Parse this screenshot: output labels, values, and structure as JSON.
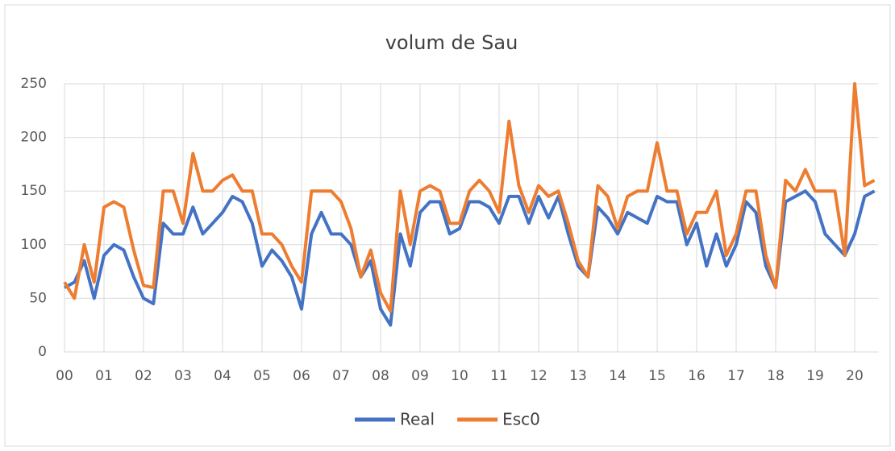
{
  "chart_data": {
    "type": "line",
    "title": "volum de Sau",
    "x": [
      0,
      0.25,
      0.5,
      0.75,
      1,
      1.25,
      1.5,
      1.75,
      2,
      2.25,
      2.5,
      2.75,
      3,
      3.25,
      3.5,
      3.75,
      4,
      4.25,
      4.5,
      4.75,
      5,
      5.25,
      5.5,
      5.75,
      6,
      6.25,
      6.5,
      6.75,
      7,
      7.25,
      7.5,
      7.75,
      8,
      8.25,
      8.5,
      8.75,
      9,
      9.25,
      9.5,
      9.75,
      10,
      10.25,
      10.5,
      10.75,
      11,
      11.25,
      11.5,
      11.75,
      12,
      12.25,
      12.5,
      12.75,
      13,
      13.25,
      13.5,
      13.75,
      14,
      14.25,
      14.5,
      14.75,
      15,
      15.25,
      15.5,
      15.75,
      16,
      16.25,
      16.5,
      16.75,
      17,
      17.25,
      17.5,
      17.75,
      18,
      18.25,
      18.5,
      18.75,
      19,
      19.25,
      19.5,
      19.75,
      20,
      20.25,
      20.5
    ],
    "series": [
      {
        "name": "Real",
        "color": "#4472c4",
        "values": [
          60,
          65,
          85,
          50,
          90,
          100,
          95,
          70,
          50,
          45,
          120,
          110,
          110,
          135,
          110,
          120,
          130,
          145,
          140,
          120,
          80,
          95,
          85,
          70,
          40,
          110,
          130,
          110,
          110,
          100,
          70,
          85,
          40,
          25,
          110,
          80,
          130,
          140,
          140,
          110,
          115,
          140,
          140,
          135,
          120,
          145,
          145,
          120,
          145,
          125,
          145,
          110,
          80,
          70,
          135,
          125,
          110,
          130,
          125,
          120,
          145,
          140,
          140,
          100,
          120,
          80,
          110,
          80,
          100,
          140,
          130,
          80,
          60,
          140,
          145,
          150,
          140,
          110,
          100,
          90,
          110,
          145,
          150
        ]
      },
      {
        "name": "Esc0",
        "color": "#ed7d31",
        "values": [
          65,
          50,
          100,
          65,
          135,
          140,
          135,
          95,
          62,
          60,
          150,
          150,
          120,
          185,
          150,
          150,
          160,
          165,
          150,
          150,
          110,
          110,
          100,
          80,
          65,
          150,
          150,
          150,
          140,
          115,
          70,
          95,
          55,
          38,
          150,
          100,
          150,
          155,
          150,
          120,
          120,
          150,
          160,
          150,
          130,
          215,
          155,
          130,
          155,
          145,
          150,
          120,
          85,
          70,
          155,
          145,
          115,
          145,
          150,
          150,
          195,
          150,
          150,
          110,
          130,
          130,
          150,
          90,
          110,
          150,
          150,
          90,
          60,
          160,
          150,
          170,
          150,
          150,
          150,
          90,
          250,
          155,
          160
        ]
      }
    ],
    "xlim": [
      0,
      20.6
    ],
    "xticks": [
      {
        "value": 0,
        "label": "00"
      },
      {
        "value": 1,
        "label": "01"
      },
      {
        "value": 2,
        "label": "02"
      },
      {
        "value": 3,
        "label": "03"
      },
      {
        "value": 4,
        "label": "04"
      },
      {
        "value": 5,
        "label": "05"
      },
      {
        "value": 6,
        "label": "06"
      },
      {
        "value": 7,
        "label": "07"
      },
      {
        "value": 8,
        "label": "08"
      },
      {
        "value": 9,
        "label": "09"
      },
      {
        "value": 10,
        "label": "10"
      },
      {
        "value": 11,
        "label": "11"
      },
      {
        "value": 12,
        "label": "12"
      },
      {
        "value": 13,
        "label": "13"
      },
      {
        "value": 14,
        "label": "14"
      },
      {
        "value": 15,
        "label": "15"
      },
      {
        "value": 16,
        "label": "16"
      },
      {
        "value": 17,
        "label": "17"
      },
      {
        "value": 18,
        "label": "18"
      },
      {
        "value": 19,
        "label": "19"
      },
      {
        "value": 20,
        "label": "20"
      }
    ],
    "ylim": [
      0,
      250
    ],
    "yticks": [
      0,
      50,
      100,
      150,
      200,
      250
    ],
    "grid": true,
    "legend": "bottom"
  }
}
